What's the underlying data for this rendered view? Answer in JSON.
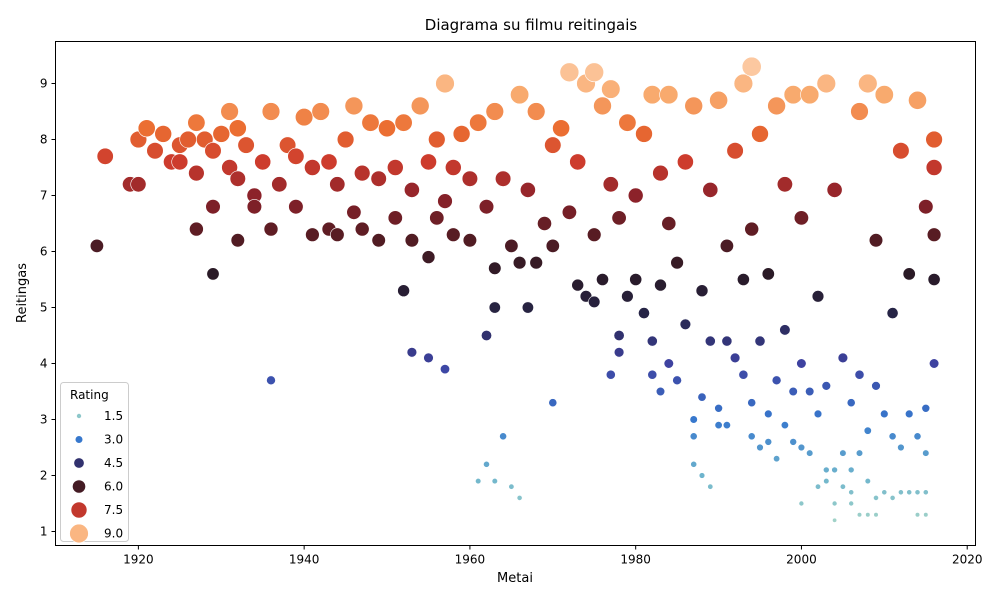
{
  "chart_data": {
    "type": "scatter",
    "title": "Diagrama su filmu reitingais",
    "xlabel": "Metai",
    "ylabel": "Reitingas",
    "xlim": [
      1910,
      2021
    ],
    "ylim": [
      0.75,
      9.75
    ],
    "xticks": [
      1920,
      1940,
      1960,
      1980,
      2000,
      2020
    ],
    "yticks": [
      1,
      2,
      3,
      4,
      5,
      6,
      7,
      8,
      9
    ],
    "grid": false,
    "color_scale": "icefire",
    "legend": {
      "title": "Rating",
      "position": "lower-left",
      "entries": [
        "1.5",
        "3.0",
        "4.5",
        "6.0",
        "7.5",
        "9.0"
      ]
    },
    "note_points": "Each point is one film: x = release year, y = rating; marker size and color encode the same rating. Sampled representative subset.",
    "points": [
      [
        1915,
        6.1
      ],
      [
        1916,
        7.7
      ],
      [
        1919,
        7.2
      ],
      [
        1920,
        7.2
      ],
      [
        1920,
        8.0
      ],
      [
        1921,
        8.2
      ],
      [
        1922,
        7.8
      ],
      [
        1923,
        8.1
      ],
      [
        1924,
        7.6
      ],
      [
        1925,
        7.9
      ],
      [
        1925,
        7.6
      ],
      [
        1926,
        8.0
      ],
      [
        1927,
        6.4
      ],
      [
        1927,
        8.3
      ],
      [
        1927,
        7.4
      ],
      [
        1928,
        8.0
      ],
      [
        1929,
        5.6
      ],
      [
        1929,
        6.8
      ],
      [
        1929,
        7.8
      ],
      [
        1930,
        8.1
      ],
      [
        1931,
        8.5
      ],
      [
        1931,
        7.5
      ],
      [
        1932,
        6.2
      ],
      [
        1932,
        7.3
      ],
      [
        1932,
        8.2
      ],
      [
        1933,
        7.9
      ],
      [
        1934,
        7.0
      ],
      [
        1934,
        6.8
      ],
      [
        1935,
        7.6
      ],
      [
        1936,
        3.7
      ],
      [
        1936,
        6.4
      ],
      [
        1936,
        8.5
      ],
      [
        1937,
        7.2
      ],
      [
        1938,
        7.9
      ],
      [
        1939,
        6.8
      ],
      [
        1939,
        7.7
      ],
      [
        1940,
        8.4
      ],
      [
        1941,
        6.3
      ],
      [
        1941,
        7.5
      ],
      [
        1942,
        8.5
      ],
      [
        1943,
        6.4
      ],
      [
        1943,
        7.6
      ],
      [
        1944,
        6.3
      ],
      [
        1944,
        7.2
      ],
      [
        1945,
        8.0
      ],
      [
        1946,
        8.6
      ],
      [
        1946,
        6.7
      ],
      [
        1947,
        6.4
      ],
      [
        1947,
        7.4
      ],
      [
        1948,
        8.3
      ],
      [
        1949,
        6.2
      ],
      [
        1949,
        7.3
      ],
      [
        1950,
        8.2
      ],
      [
        1951,
        6.6
      ],
      [
        1951,
        7.5
      ],
      [
        1952,
        5.3
      ],
      [
        1952,
        8.3
      ],
      [
        1953,
        6.2
      ],
      [
        1953,
        4.2
      ],
      [
        1953,
        7.1
      ],
      [
        1954,
        8.6
      ],
      [
        1955,
        4.1
      ],
      [
        1955,
        5.9
      ],
      [
        1955,
        7.6
      ],
      [
        1956,
        8.0
      ],
      [
        1956,
        6.6
      ],
      [
        1957,
        3.9
      ],
      [
        1957,
        9.0
      ],
      [
        1957,
        6.9
      ],
      [
        1958,
        7.5
      ],
      [
        1958,
        6.3
      ],
      [
        1959,
        8.1
      ],
      [
        1960,
        6.2
      ],
      [
        1960,
        7.3
      ],
      [
        1961,
        8.3
      ],
      [
        1961,
        1.9
      ],
      [
        1962,
        2.2
      ],
      [
        1962,
        4.5
      ],
      [
        1962,
        6.8
      ],
      [
        1963,
        1.9
      ],
      [
        1963,
        5.7
      ],
      [
        1963,
        5.0
      ],
      [
        1963,
        8.5
      ],
      [
        1964,
        2.7
      ],
      [
        1964,
        7.3
      ],
      [
        1965,
        1.8
      ],
      [
        1965,
        6.1
      ],
      [
        1966,
        1.6
      ],
      [
        1966,
        8.8
      ],
      [
        1966,
        5.8
      ],
      [
        1967,
        5.0
      ],
      [
        1967,
        7.1
      ],
      [
        1968,
        5.8
      ],
      [
        1968,
        8.5
      ],
      [
        1969,
        6.5
      ],
      [
        1970,
        3.3
      ],
      [
        1970,
        7.9
      ],
      [
        1970,
        6.1
      ],
      [
        1971,
        8.2
      ],
      [
        1972,
        9.2
      ],
      [
        1972,
        6.7
      ],
      [
        1973,
        5.4
      ],
      [
        1973,
        7.6
      ],
      [
        1974,
        5.2
      ],
      [
        1974,
        9.0
      ],
      [
        1975,
        5.1
      ],
      [
        1975,
        9.2
      ],
      [
        1975,
        6.3
      ],
      [
        1976,
        5.5
      ],
      [
        1976,
        8.6
      ],
      [
        1977,
        3.8
      ],
      [
        1977,
        7.2
      ],
      [
        1977,
        8.9
      ],
      [
        1978,
        4.2
      ],
      [
        1978,
        4.5
      ],
      [
        1978,
        6.6
      ],
      [
        1979,
        5.2
      ],
      [
        1979,
        8.3
      ],
      [
        1980,
        5.5
      ],
      [
        1980,
        7.0
      ],
      [
        1981,
        4.9
      ],
      [
        1981,
        8.1
      ],
      [
        1982,
        3.8
      ],
      [
        1982,
        4.4
      ],
      [
        1982,
        8.8
      ],
      [
        1983,
        3.5
      ],
      [
        1983,
        5.4
      ],
      [
        1983,
        7.4
      ],
      [
        1984,
        4.0
      ],
      [
        1984,
        6.5
      ],
      [
        1984,
        8.8
      ],
      [
        1985,
        3.7
      ],
      [
        1985,
        5.8
      ],
      [
        1986,
        4.7
      ],
      [
        1986,
        7.6
      ],
      [
        1987,
        2.7
      ],
      [
        1987,
        3.0
      ],
      [
        1987,
        2.2
      ],
      [
        1987,
        8.6
      ],
      [
        1988,
        2.0
      ],
      [
        1988,
        3.4
      ],
      [
        1988,
        5.3
      ],
      [
        1989,
        1.8
      ],
      [
        1989,
        4.4
      ],
      [
        1989,
        7.1
      ],
      [
        1990,
        2.9
      ],
      [
        1990,
        3.2
      ],
      [
        1990,
        8.7
      ],
      [
        1991,
        2.9
      ],
      [
        1991,
        4.4
      ],
      [
        1991,
        6.1
      ],
      [
        1992,
        4.1
      ],
      [
        1992,
        7.8
      ],
      [
        1993,
        3.8
      ],
      [
        1993,
        9.0
      ],
      [
        1993,
        5.5
      ],
      [
        1994,
        2.7
      ],
      [
        1994,
        3.3
      ],
      [
        1994,
        9.3
      ],
      [
        1994,
        6.4
      ],
      [
        1995,
        2.5
      ],
      [
        1995,
        4.4
      ],
      [
        1995,
        8.1
      ],
      [
        1996,
        2.6
      ],
      [
        1996,
        3.1
      ],
      [
        1996,
        5.6
      ],
      [
        1997,
        2.3
      ],
      [
        1997,
        3.7
      ],
      [
        1997,
        8.6
      ],
      [
        1998,
        2.9
      ],
      [
        1998,
        4.6
      ],
      [
        1998,
        7.2
      ],
      [
        1999,
        2.6
      ],
      [
        1999,
        3.5
      ],
      [
        1999,
        8.8
      ],
      [
        2000,
        1.5
      ],
      [
        2000,
        2.5
      ],
      [
        2000,
        4.0
      ],
      [
        2000,
        6.6
      ],
      [
        2001,
        2.4
      ],
      [
        2001,
        3.5
      ],
      [
        2001,
        8.8
      ],
      [
        2002,
        1.8
      ],
      [
        2002,
        3.1
      ],
      [
        2002,
        5.2
      ],
      [
        2003,
        2.1
      ],
      [
        2003,
        1.9
      ],
      [
        2003,
        3.6
      ],
      [
        2003,
        9.0
      ],
      [
        2004,
        1.2
      ],
      [
        2004,
        1.5
      ],
      [
        2004,
        2.1
      ],
      [
        2004,
        7.1
      ],
      [
        2005,
        2.4
      ],
      [
        2005,
        1.8
      ],
      [
        2005,
        4.1
      ],
      [
        2006,
        1.5
      ],
      [
        2006,
        1.7
      ],
      [
        2006,
        2.1
      ],
      [
        2006,
        3.3
      ],
      [
        2007,
        1.3
      ],
      [
        2007,
        2.4
      ],
      [
        2007,
        3.8
      ],
      [
        2007,
        8.5
      ],
      [
        2008,
        1.3
      ],
      [
        2008,
        1.9
      ],
      [
        2008,
        2.8
      ],
      [
        2008,
        9.0
      ],
      [
        2009,
        1.6
      ],
      [
        2009,
        1.3
      ],
      [
        2009,
        3.6
      ],
      [
        2009,
        6.2
      ],
      [
        2010,
        1.7
      ],
      [
        2010,
        3.1
      ],
      [
        2010,
        8.8
      ],
      [
        2011,
        1.6
      ],
      [
        2011,
        2.7
      ],
      [
        2011,
        4.9
      ],
      [
        2012,
        1.7
      ],
      [
        2012,
        2.5
      ],
      [
        2012,
        7.8
      ],
      [
        2013,
        1.7
      ],
      [
        2013,
        3.1
      ],
      [
        2013,
        5.6
      ],
      [
        2014,
        1.3
      ],
      [
        2014,
        1.7
      ],
      [
        2014,
        2.7
      ],
      [
        2014,
        8.7
      ],
      [
        2015,
        1.3
      ],
      [
        2015,
        1.7
      ],
      [
        2015,
        2.4
      ],
      [
        2015,
        3.2
      ],
      [
        2015,
        6.8
      ],
      [
        2016,
        4.0
      ],
      [
        2016,
        7.5
      ],
      [
        2016,
        8.0
      ],
      [
        2016,
        5.5
      ],
      [
        2016,
        6.3
      ]
    ]
  }
}
